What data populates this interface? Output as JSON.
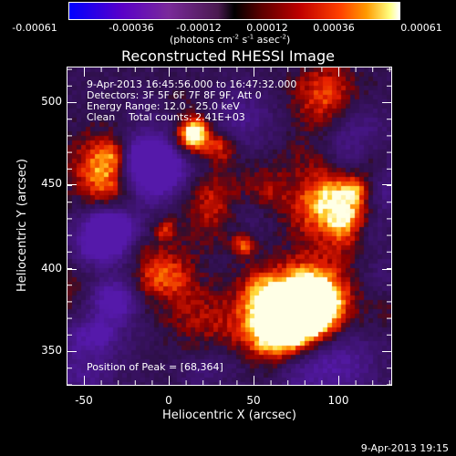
{
  "colorbar": {
    "ticks": [
      "-0.00061",
      "-0.00036",
      "-0.00012",
      "0.00012",
      "0.00036",
      "0.00061"
    ],
    "unit_parts": {
      "a": "(photons cm",
      "b": "-2",
      "c": " s",
      "d": "-1",
      "e": " asec",
      "f": "-2",
      "g": ")"
    }
  },
  "plot": {
    "title": "Reconstructed RHESSI Image",
    "xlabel": "Heliocentric X (arcsec)",
    "ylabel": "Heliocentric Y (arcsec)",
    "x_ticks": [
      "-50",
      "0",
      "50",
      "100"
    ],
    "y_ticks": [
      "500",
      "450",
      "400",
      "350"
    ],
    "xlim": [
      -60,
      130
    ],
    "ylim": [
      327,
      522
    ]
  },
  "annotations": {
    "time_range": "9-Apr-2013 16:45:56.000 to 16:47:32.000",
    "detectors": "Detectors: 3F 5F 6F 7F 8F 9F, Att 0",
    "energy": "Energy Range: 12.0 - 25.0 keV",
    "method": "Clean",
    "counts": "Total counts: 2.41E+03",
    "peak": "Position of Peak = [68,364]"
  },
  "footer": {
    "timestamp": "9-Apr-2013 19:15"
  },
  "image": {
    "peak_x": 68,
    "peak_y": 364
  }
}
